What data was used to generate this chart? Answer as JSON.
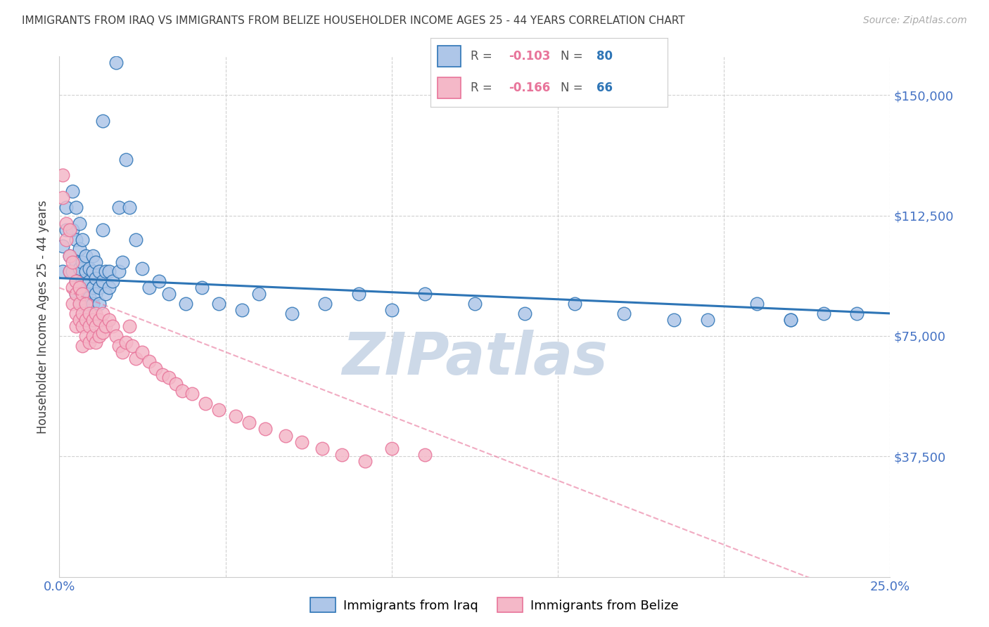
{
  "title": "IMMIGRANTS FROM IRAQ VS IMMIGRANTS FROM BELIZE HOUSEHOLDER INCOME AGES 25 - 44 YEARS CORRELATION CHART",
  "source": "Source: ZipAtlas.com",
  "ylabel": "Householder Income Ages 25 - 44 years",
  "xlim": [
    0.0,
    0.25
  ],
  "ylim": [
    0,
    162000
  ],
  "watermark": "ZIPatlas",
  "legend_iraq_r": "-0.103",
  "legend_iraq_n": "80",
  "legend_belize_r": "-0.166",
  "legend_belize_n": "66",
  "iraq_color": "#aec6e8",
  "iraq_line_color": "#2e75b6",
  "belize_color": "#f4b8c8",
  "belize_line_color": "#e8749a",
  "iraq_points_x": [
    0.001,
    0.001,
    0.002,
    0.002,
    0.003,
    0.003,
    0.004,
    0.004,
    0.004,
    0.005,
    0.005,
    0.005,
    0.005,
    0.005,
    0.006,
    0.006,
    0.006,
    0.006,
    0.006,
    0.007,
    0.007,
    0.007,
    0.007,
    0.008,
    0.008,
    0.008,
    0.008,
    0.009,
    0.009,
    0.009,
    0.01,
    0.01,
    0.01,
    0.01,
    0.011,
    0.011,
    0.011,
    0.012,
    0.012,
    0.012,
    0.013,
    0.013,
    0.013,
    0.014,
    0.014,
    0.015,
    0.015,
    0.016,
    0.017,
    0.018,
    0.018,
    0.019,
    0.02,
    0.021,
    0.023,
    0.025,
    0.027,
    0.03,
    0.033,
    0.038,
    0.043,
    0.048,
    0.055,
    0.06,
    0.07,
    0.08,
    0.09,
    0.1,
    0.11,
    0.125,
    0.14,
    0.155,
    0.17,
    0.185,
    0.195,
    0.21,
    0.22,
    0.23,
    0.24,
    0.22
  ],
  "iraq_points_y": [
    103000,
    95000,
    115000,
    108000,
    100000,
    95000,
    120000,
    108000,
    95000,
    115000,
    105000,
    98000,
    92000,
    88000,
    110000,
    102000,
    96000,
    90000,
    85000,
    105000,
    98000,
    92000,
    88000,
    100000,
    95000,
    88000,
    83000,
    96000,
    92000,
    87000,
    100000,
    95000,
    90000,
    85000,
    98000,
    93000,
    88000,
    95000,
    90000,
    85000,
    142000,
    108000,
    92000,
    95000,
    88000,
    95000,
    90000,
    92000,
    160000,
    115000,
    95000,
    98000,
    130000,
    115000,
    105000,
    96000,
    90000,
    92000,
    88000,
    85000,
    90000,
    85000,
    83000,
    88000,
    82000,
    85000,
    88000,
    83000,
    88000,
    85000,
    82000,
    85000,
    82000,
    80000,
    80000,
    85000,
    80000,
    82000,
    82000,
    80000
  ],
  "belize_points_x": [
    0.001,
    0.001,
    0.002,
    0.002,
    0.003,
    0.003,
    0.003,
    0.004,
    0.004,
    0.004,
    0.005,
    0.005,
    0.005,
    0.005,
    0.006,
    0.006,
    0.006,
    0.007,
    0.007,
    0.007,
    0.007,
    0.008,
    0.008,
    0.008,
    0.009,
    0.009,
    0.009,
    0.01,
    0.01,
    0.011,
    0.011,
    0.011,
    0.012,
    0.012,
    0.013,
    0.013,
    0.014,
    0.015,
    0.016,
    0.017,
    0.018,
    0.019,
    0.02,
    0.021,
    0.022,
    0.023,
    0.025,
    0.027,
    0.029,
    0.031,
    0.033,
    0.035,
    0.037,
    0.04,
    0.044,
    0.048,
    0.053,
    0.057,
    0.062,
    0.068,
    0.073,
    0.079,
    0.085,
    0.092,
    0.1,
    0.11
  ],
  "belize_points_y": [
    125000,
    118000,
    110000,
    105000,
    100000,
    95000,
    108000,
    98000,
    90000,
    85000,
    92000,
    88000,
    82000,
    78000,
    90000,
    85000,
    80000,
    88000,
    82000,
    78000,
    72000,
    85000,
    80000,
    75000,
    82000,
    78000,
    73000,
    80000,
    75000,
    82000,
    78000,
    73000,
    80000,
    75000,
    82000,
    76000,
    78000,
    80000,
    78000,
    75000,
    72000,
    70000,
    73000,
    78000,
    72000,
    68000,
    70000,
    67000,
    65000,
    63000,
    62000,
    60000,
    58000,
    57000,
    54000,
    52000,
    50000,
    48000,
    46000,
    44000,
    42000,
    40000,
    38000,
    36000,
    40000,
    38000
  ],
  "background_color": "#ffffff",
  "grid_color": "#cccccc",
  "title_color": "#404040",
  "axis_label_color": "#4472c4",
  "watermark_color": "#cdd9e8"
}
